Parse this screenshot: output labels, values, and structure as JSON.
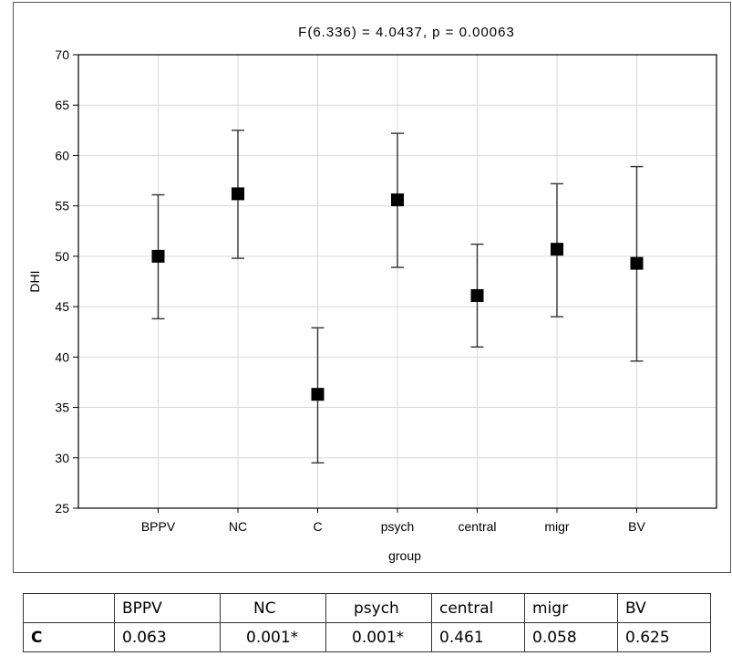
{
  "chart_data": {
    "type": "scatter",
    "title": "F(6.336) = 4.0437, p = 0.00063",
    "xlabel": "group",
    "ylabel": "DHI",
    "ylim": [
      25,
      70
    ],
    "yticks": [
      25,
      30,
      35,
      40,
      45,
      50,
      55,
      60,
      65,
      70
    ],
    "categories": [
      "BPPV",
      "NC",
      "C",
      "psych",
      "central",
      "migr",
      "BV"
    ],
    "values": [
      50.0,
      56.2,
      36.3,
      55.6,
      46.1,
      50.7,
      49.3
    ],
    "error_low": [
      43.8,
      49.8,
      29.5,
      48.9,
      41.0,
      44.0,
      39.6
    ],
    "error_high": [
      56.1,
      62.5,
      42.9,
      62.2,
      51.2,
      57.2,
      58.9
    ],
    "grid": true,
    "marker": "square",
    "marker_color": "#000000"
  },
  "table": {
    "columns": [
      "",
      "BPPV",
      "NC",
      "psych",
      "central",
      "migr",
      "BV"
    ],
    "rows": [
      {
        "label": "C",
        "cells": [
          "0.063",
          "0.001*",
          "0.001*",
          "0.461",
          "0.058",
          "0.625"
        ]
      }
    ]
  }
}
